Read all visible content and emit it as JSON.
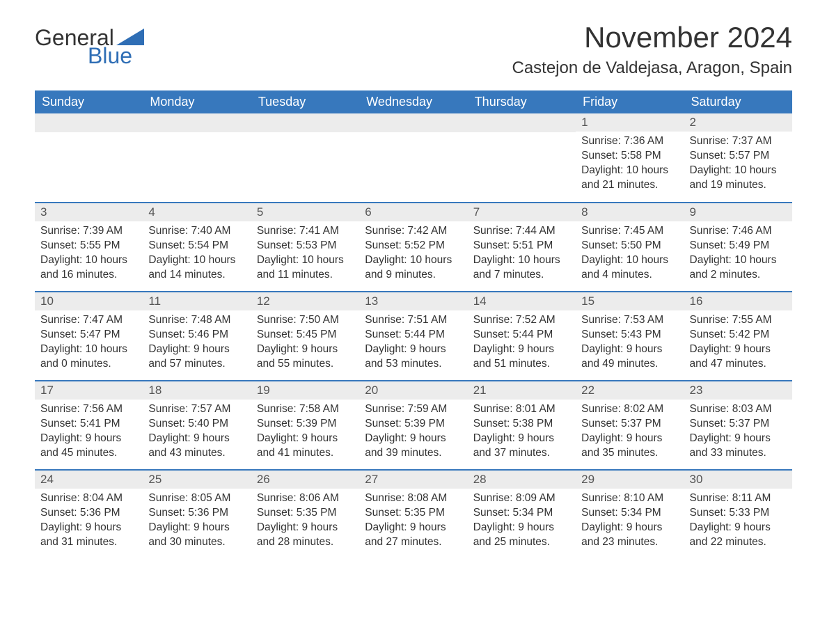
{
  "logo": {
    "text_general": "General",
    "text_blue": "Blue",
    "triangle_color": "#2f6eb5"
  },
  "title": "November 2024",
  "location": "Castejon de Valdejasa, Aragon, Spain",
  "colors": {
    "header_bg": "#3778bd",
    "header_fg": "#ffffff",
    "daynum_bg": "#ececec",
    "row_border": "#3778bd",
    "text": "#333333",
    "logo_blue": "#2f6eb5",
    "page_bg": "#ffffff"
  },
  "typography": {
    "title_fontsize_pt": 32,
    "location_fontsize_pt": 18,
    "header_fontsize_pt": 14,
    "body_fontsize_pt": 12,
    "font_family": "Arial"
  },
  "day_headers": [
    "Sunday",
    "Monday",
    "Tuesday",
    "Wednesday",
    "Thursday",
    "Friday",
    "Saturday"
  ],
  "weeks": [
    [
      null,
      null,
      null,
      null,
      null,
      {
        "n": "1",
        "sunrise": "Sunrise: 7:36 AM",
        "sunset": "Sunset: 5:58 PM",
        "daylight": "Daylight: 10 hours and 21 minutes."
      },
      {
        "n": "2",
        "sunrise": "Sunrise: 7:37 AM",
        "sunset": "Sunset: 5:57 PM",
        "daylight": "Daylight: 10 hours and 19 minutes."
      }
    ],
    [
      {
        "n": "3",
        "sunrise": "Sunrise: 7:39 AM",
        "sunset": "Sunset: 5:55 PM",
        "daylight": "Daylight: 10 hours and 16 minutes."
      },
      {
        "n": "4",
        "sunrise": "Sunrise: 7:40 AM",
        "sunset": "Sunset: 5:54 PM",
        "daylight": "Daylight: 10 hours and 14 minutes."
      },
      {
        "n": "5",
        "sunrise": "Sunrise: 7:41 AM",
        "sunset": "Sunset: 5:53 PM",
        "daylight": "Daylight: 10 hours and 11 minutes."
      },
      {
        "n": "6",
        "sunrise": "Sunrise: 7:42 AM",
        "sunset": "Sunset: 5:52 PM",
        "daylight": "Daylight: 10 hours and 9 minutes."
      },
      {
        "n": "7",
        "sunrise": "Sunrise: 7:44 AM",
        "sunset": "Sunset: 5:51 PM",
        "daylight": "Daylight: 10 hours and 7 minutes."
      },
      {
        "n": "8",
        "sunrise": "Sunrise: 7:45 AM",
        "sunset": "Sunset: 5:50 PM",
        "daylight": "Daylight: 10 hours and 4 minutes."
      },
      {
        "n": "9",
        "sunrise": "Sunrise: 7:46 AM",
        "sunset": "Sunset: 5:49 PM",
        "daylight": "Daylight: 10 hours and 2 minutes."
      }
    ],
    [
      {
        "n": "10",
        "sunrise": "Sunrise: 7:47 AM",
        "sunset": "Sunset: 5:47 PM",
        "daylight": "Daylight: 10 hours and 0 minutes."
      },
      {
        "n": "11",
        "sunrise": "Sunrise: 7:48 AM",
        "sunset": "Sunset: 5:46 PM",
        "daylight": "Daylight: 9 hours and 57 minutes."
      },
      {
        "n": "12",
        "sunrise": "Sunrise: 7:50 AM",
        "sunset": "Sunset: 5:45 PM",
        "daylight": "Daylight: 9 hours and 55 minutes."
      },
      {
        "n": "13",
        "sunrise": "Sunrise: 7:51 AM",
        "sunset": "Sunset: 5:44 PM",
        "daylight": "Daylight: 9 hours and 53 minutes."
      },
      {
        "n": "14",
        "sunrise": "Sunrise: 7:52 AM",
        "sunset": "Sunset: 5:44 PM",
        "daylight": "Daylight: 9 hours and 51 minutes."
      },
      {
        "n": "15",
        "sunrise": "Sunrise: 7:53 AM",
        "sunset": "Sunset: 5:43 PM",
        "daylight": "Daylight: 9 hours and 49 minutes."
      },
      {
        "n": "16",
        "sunrise": "Sunrise: 7:55 AM",
        "sunset": "Sunset: 5:42 PM",
        "daylight": "Daylight: 9 hours and 47 minutes."
      }
    ],
    [
      {
        "n": "17",
        "sunrise": "Sunrise: 7:56 AM",
        "sunset": "Sunset: 5:41 PM",
        "daylight": "Daylight: 9 hours and 45 minutes."
      },
      {
        "n": "18",
        "sunrise": "Sunrise: 7:57 AM",
        "sunset": "Sunset: 5:40 PM",
        "daylight": "Daylight: 9 hours and 43 minutes."
      },
      {
        "n": "19",
        "sunrise": "Sunrise: 7:58 AM",
        "sunset": "Sunset: 5:39 PM",
        "daylight": "Daylight: 9 hours and 41 minutes."
      },
      {
        "n": "20",
        "sunrise": "Sunrise: 7:59 AM",
        "sunset": "Sunset: 5:39 PM",
        "daylight": "Daylight: 9 hours and 39 minutes."
      },
      {
        "n": "21",
        "sunrise": "Sunrise: 8:01 AM",
        "sunset": "Sunset: 5:38 PM",
        "daylight": "Daylight: 9 hours and 37 minutes."
      },
      {
        "n": "22",
        "sunrise": "Sunrise: 8:02 AM",
        "sunset": "Sunset: 5:37 PM",
        "daylight": "Daylight: 9 hours and 35 minutes."
      },
      {
        "n": "23",
        "sunrise": "Sunrise: 8:03 AM",
        "sunset": "Sunset: 5:37 PM",
        "daylight": "Daylight: 9 hours and 33 minutes."
      }
    ],
    [
      {
        "n": "24",
        "sunrise": "Sunrise: 8:04 AM",
        "sunset": "Sunset: 5:36 PM",
        "daylight": "Daylight: 9 hours and 31 minutes."
      },
      {
        "n": "25",
        "sunrise": "Sunrise: 8:05 AM",
        "sunset": "Sunset: 5:36 PM",
        "daylight": "Daylight: 9 hours and 30 minutes."
      },
      {
        "n": "26",
        "sunrise": "Sunrise: 8:06 AM",
        "sunset": "Sunset: 5:35 PM",
        "daylight": "Daylight: 9 hours and 28 minutes."
      },
      {
        "n": "27",
        "sunrise": "Sunrise: 8:08 AM",
        "sunset": "Sunset: 5:35 PM",
        "daylight": "Daylight: 9 hours and 27 minutes."
      },
      {
        "n": "28",
        "sunrise": "Sunrise: 8:09 AM",
        "sunset": "Sunset: 5:34 PM",
        "daylight": "Daylight: 9 hours and 25 minutes."
      },
      {
        "n": "29",
        "sunrise": "Sunrise: 8:10 AM",
        "sunset": "Sunset: 5:34 PM",
        "daylight": "Daylight: 9 hours and 23 minutes."
      },
      {
        "n": "30",
        "sunrise": "Sunrise: 8:11 AM",
        "sunset": "Sunset: 5:33 PM",
        "daylight": "Daylight: 9 hours and 22 minutes."
      }
    ]
  ]
}
